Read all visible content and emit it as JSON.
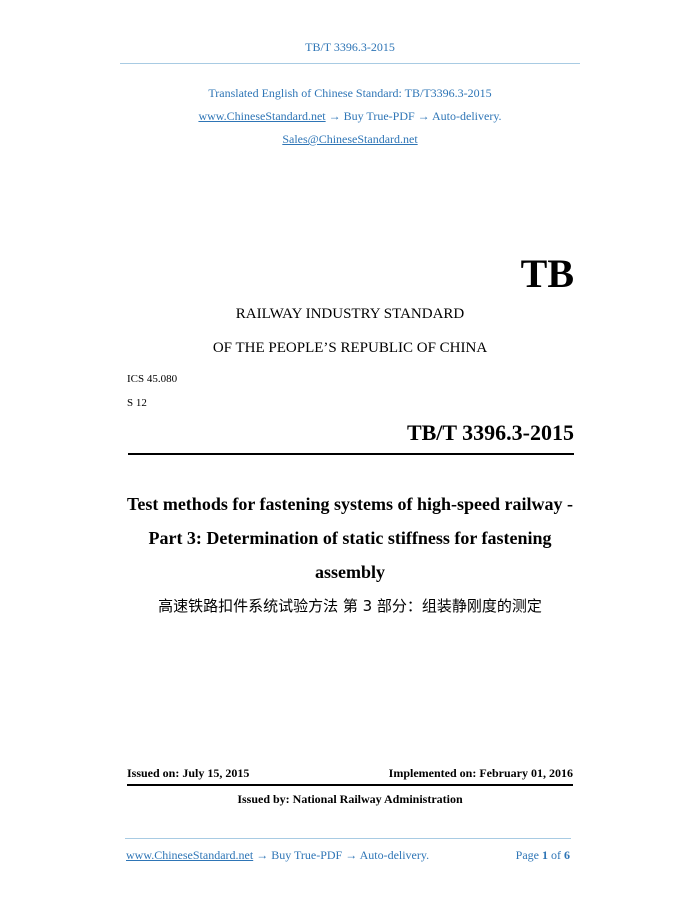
{
  "header": {
    "doc_code": "TB/T 3396.3-2015"
  },
  "promo": {
    "line1": "Translated English of Chinese Standard: TB/T3396.3-2015",
    "site_link": "www.ChineseStandard.net",
    "line2_rest": " → Buy True-PDF → Auto-delivery.",
    "email": "Sales@ChineseStandard.net"
  },
  "cover": {
    "logo": "TB",
    "org1": "RAILWAY INDUSTRY STANDARD",
    "org2": "OF THE PEOPLE’S REPUBLIC OF CHINA",
    "ics": "ICS 45.080",
    "ccs": "S 12",
    "std_number": "TB/T 3396.3-2015",
    "title_line1": "Test methods for fastening systems of high-speed railway -",
    "title_line2": "Part 3: Determination of static stiffness for fastening",
    "title_line3": "assembly",
    "title_cn": "高速铁路扣件系统试验方法  第 3 部分：组装静刚度的测定",
    "issued_on": "Issued on: July 15, 2015",
    "implemented_on": "Implemented on: February 01, 2016",
    "issued_by": "Issued by: National Railway Administration"
  },
  "footer": {
    "site_link": "www.ChineseStandard.net",
    "rest": " → Buy True-PDF → Auto-delivery.",
    "page_label": "Page",
    "page": "1",
    "of_label": "of",
    "total": "6"
  },
  "colors": {
    "accent": "#2e75b6",
    "rule": "#a8cbe3"
  }
}
